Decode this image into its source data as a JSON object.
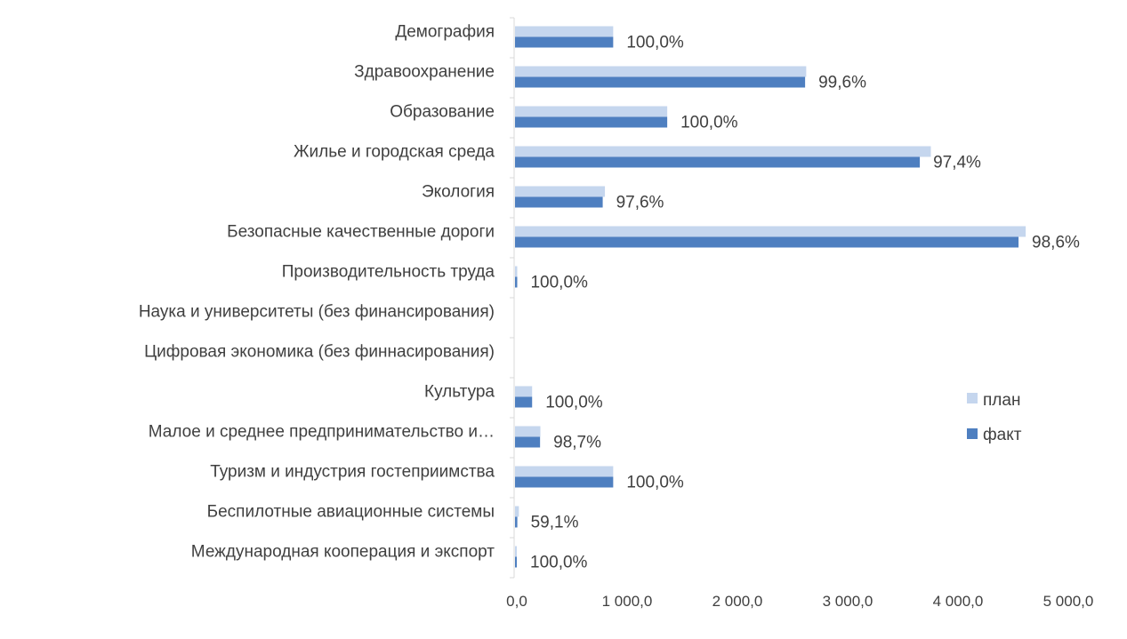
{
  "chart_data": {
    "type": "bar",
    "orientation": "horizontal",
    "categories": [
      "Демография",
      "Здравоохранение",
      "Образование",
      "Жилье и городская среда",
      "Экология",
      "Безопасные качественные дороги",
      "Производительность труда",
      "Наука и университеты (без финансирования)",
      "Цифровая экономика (без финнасирования)",
      "Культура",
      "Малое и среднее предпринимательство и…",
      "Туризм и индустрия гостеприимства",
      "Беспилотные авиационные системы",
      "Международная кооперация и экспорт"
    ],
    "series": [
      {
        "name": "план",
        "color": "#C5D6EE",
        "values": [
          890,
          2640,
          1380,
          3770,
          815,
          4630,
          20,
          null,
          null,
          155,
          230,
          890,
          35,
          15
        ]
      },
      {
        "name": "факт",
        "color": "#4E7FC0",
        "values": [
          890,
          2630,
          1380,
          3670,
          795,
          4565,
          20,
          null,
          null,
          155,
          227,
          890,
          21,
          15
        ]
      }
    ],
    "data_labels": [
      "100,0%",
      "99,6%",
      "100,0%",
      "97,4%",
      "97,6%",
      "98,6%",
      "100,0%",
      "",
      "",
      "100,0%",
      "98,7%",
      "100,0%",
      "59,1%",
      "100,0%"
    ],
    "x_ticks": [
      "0,0",
      "1 000,0",
      "2 000,0",
      "3 000,0",
      "4 000,0",
      "5 000,0"
    ],
    "xlim": [
      0,
      5000
    ],
    "grid": false,
    "legend_position": "right"
  }
}
